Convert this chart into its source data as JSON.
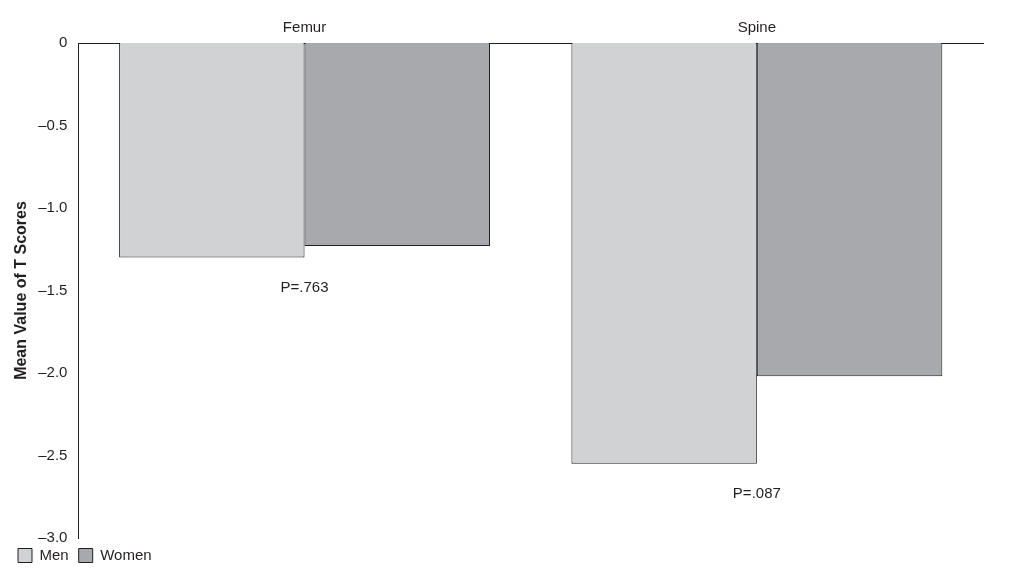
{
  "chart_data": {
    "type": "bar",
    "ylabel": "Mean Value of T Scores",
    "categories": [
      "Femur",
      "Spine"
    ],
    "series": [
      {
        "name": "Men",
        "color": "#d1d2d4",
        "values": [
          -1.3,
          -2.55
        ]
      },
      {
        "name": "Women",
        "color": "#a7a9ac",
        "values": [
          -1.23,
          -2.02
        ]
      }
    ],
    "ylim": [
      -3.0,
      0
    ],
    "yticks": [
      {
        "value": -3.0,
        "label": "–3.0"
      },
      {
        "value": -2.5,
        "label": "–2.5"
      },
      {
        "value": -2.0,
        "label": "–2.0"
      },
      {
        "value": -1.5,
        "label": "–1.5"
      },
      {
        "value": -1.0,
        "label": "–1.0"
      },
      {
        "value": -0.5,
        "label": "–0.5"
      },
      0
    ],
    "annotations": [
      "P=.763",
      "P=.087"
    ],
    "grid": false,
    "legend": "bottom left"
  }
}
